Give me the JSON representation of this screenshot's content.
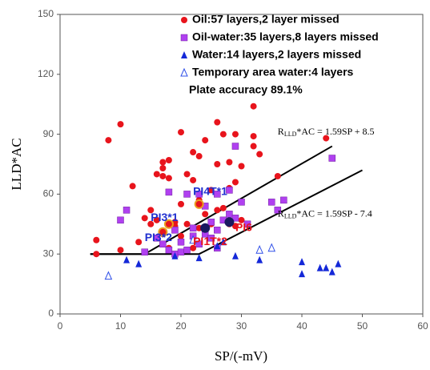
{
  "chart_data": {
    "type": "scatter",
    "xlabel": "SP/(-mV)",
    "ylabel": "LLD*AC",
    "xlim": [
      0,
      60
    ],
    "ylim": [
      0,
      150
    ],
    "xticks": [
      0,
      10,
      20,
      30,
      40,
      50,
      60
    ],
    "yticks": [
      0,
      30,
      60,
      90,
      120,
      150
    ],
    "grid": false,
    "legend": "top",
    "series": [
      {
        "name": "Oil:57 layers,2 layer missed",
        "color": "#e8141c",
        "marker": "circle",
        "x": [
          6,
          6,
          8,
          10,
          10,
          12,
          13,
          14,
          15,
          15,
          16,
          16,
          17,
          17,
          18,
          17,
          18,
          19,
          20,
          20,
          21,
          21,
          22,
          22,
          23,
          23,
          24,
          24,
          25,
          25,
          26,
          26,
          26,
          27,
          27,
          28,
          28,
          29,
          29,
          30,
          30,
          32,
          32,
          32,
          33,
          36,
          44,
          19,
          20,
          23,
          24,
          22,
          21,
          18,
          17,
          28,
          29
        ],
        "y": [
          30,
          37,
          87,
          95,
          32,
          64,
          36,
          48,
          45,
          52,
          47,
          70,
          73,
          76,
          77,
          69,
          68,
          46,
          91,
          55,
          70,
          45,
          81,
          67,
          79,
          57,
          87,
          50,
          62,
          45,
          96,
          75,
          52,
          90,
          53,
          76,
          63,
          90,
          66,
          74,
          47,
          104,
          89,
          84,
          80,
          69,
          88,
          44,
          39,
          43,
          41,
          33,
          32,
          33,
          40,
          45,
          44
        ]
      },
      {
        "name": "Oil-water:35 layers,8 layers missed",
        "color": "#b040f0",
        "marker": "square",
        "x": [
          10,
          11,
          14,
          16,
          17,
          18,
          18,
          19,
          20,
          21,
          21,
          22,
          23,
          24,
          25,
          25,
          26,
          26,
          27,
          28,
          28,
          29,
          29,
          30,
          31,
          35,
          36,
          37,
          45,
          23,
          24,
          26,
          20,
          22,
          19
        ],
        "y": [
          47,
          52,
          31,
          38,
          35,
          32,
          61,
          30,
          31,
          60,
          32,
          43,
          35,
          40,
          38,
          46,
          33,
          42,
          47,
          50,
          62,
          48,
          84,
          56,
          45,
          56,
          52,
          57,
          78,
          60,
          54,
          60,
          36,
          39,
          42
        ]
      },
      {
        "name": "Water:14 layers,2 layers missed",
        "color": "#1428d8",
        "marker": "triangle",
        "x": [
          11,
          13,
          19,
          23,
          26,
          27,
          29,
          33,
          40,
          40,
          43,
          44,
          45,
          46
        ],
        "y": [
          27,
          25,
          29,
          28,
          34,
          36,
          29,
          27,
          26,
          20,
          23,
          23,
          21,
          25
        ]
      },
      {
        "name": "Temporary area water:4 layers",
        "color": "#3050e8",
        "marker": "triangle-open",
        "x": [
          8,
          33,
          35,
          22
        ],
        "y": [
          19,
          32,
          33,
          37
        ]
      }
    ],
    "highlighted": {
      "x": [
        17,
        18,
        23,
        24,
        28
      ],
      "y": [
        41,
        45,
        55,
        43,
        46
      ],
      "colors": [
        "#e8a020",
        "#e8a020",
        "#e8a020",
        "#1a1a60",
        "#1a1a60"
      ]
    },
    "note": "Plate accuracy 89.1%",
    "boundaries": [
      {
        "x": [
          5,
          14,
          45
        ],
        "y": [
          30,
          30,
          84
        ]
      },
      {
        "x": [
          5,
          23,
          50
        ],
        "y": [
          30,
          30,
          72
        ]
      }
    ],
    "equations": [
      {
        "r": "R",
        "sub": "LLD",
        "rest": "*AC = 1.59SP + 8.5",
        "x": 36,
        "y": 91
      },
      {
        "r": "R",
        "sub": "LLD",
        "rest": "*AC = 1.59SP - 7.4",
        "x": 36,
        "y": 50
      }
    ],
    "point_labels": [
      {
        "text": "PI4T*1",
        "x": 22,
        "y": 61,
        "color": "#2030d0"
      },
      {
        "text": "PI3*1",
        "x": 15,
        "y": 48,
        "color": "#2030d0"
      },
      {
        "text": "PI3*2",
        "x": 14,
        "y": 38,
        "color": "#2030d0"
      },
      {
        "text": "PI1T*2",
        "x": 22,
        "y": 36,
        "color": "#e8141c"
      },
      {
        "text": "PI6",
        "x": 29,
        "y": 43,
        "color": "#e8141c"
      }
    ]
  }
}
